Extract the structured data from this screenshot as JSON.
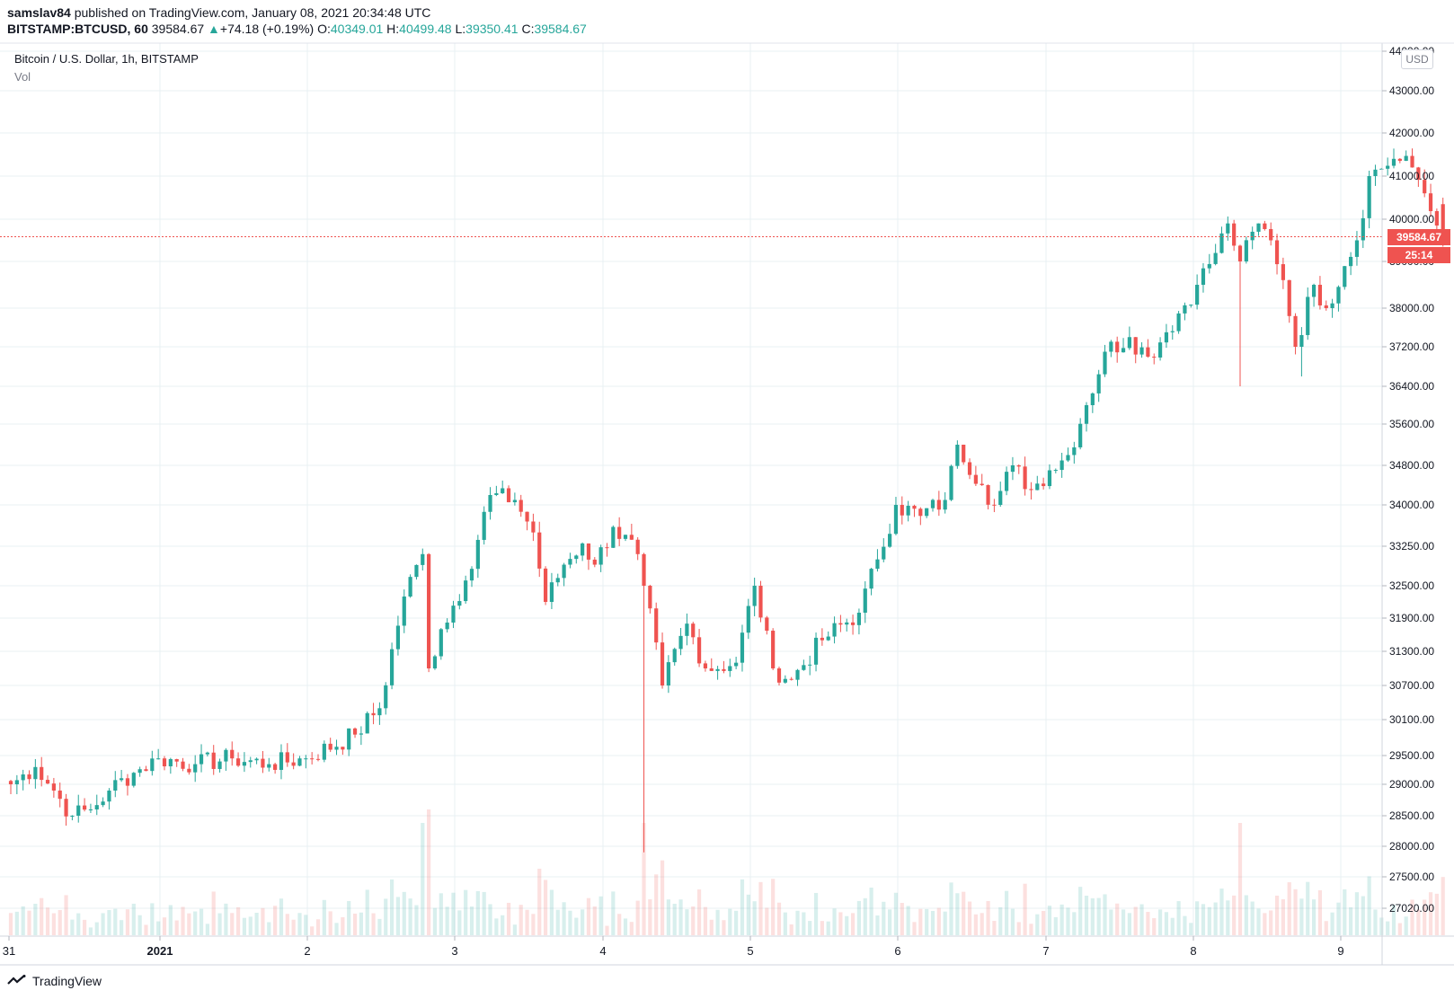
{
  "header": {
    "author": "samslav84",
    "published_text": " published on TradingView.com, January 08, 2021 20:34:48 UTC",
    "symbol": "BITSTAMP:BTCUSD, 60",
    "last": "39584.67",
    "change_arrow": "▲",
    "change": "+74.18 (+0.19%)",
    "o_label": "O:",
    "o_value": "40349.01",
    "h_label": "H:",
    "h_value": "40499.48",
    "l_label": "L:",
    "l_value": "39350.41",
    "c_label": "C:",
    "c_value": "39584.67"
  },
  "legend": {
    "series_title": "Bitcoin / U.S. Dollar, 1h, BITSTAMP",
    "indicator": "Vol"
  },
  "currency_button": "USD",
  "price_tag": {
    "value": "39584.67",
    "countdown": "25:14"
  },
  "footer": {
    "brand": "TradingView"
  },
  "colors": {
    "up": "#26a69a",
    "down": "#ef5350",
    "grid": "#e9f0f3"
  },
  "chart_data": {
    "type": "candlestick",
    "title": "Bitcoin / U.S. Dollar, 1h, BITSTAMP",
    "x_ticks": [
      "31",
      "2021",
      "2",
      "3",
      "4",
      "5",
      "6",
      "7",
      "8",
      "9"
    ],
    "y_ticks": [
      "44000.00",
      "43000.00",
      "42000.00",
      "41000.00",
      "40000.00",
      "39000.00",
      "38000.00",
      "37200.00",
      "36400.00",
      "35600.00",
      "34800.00",
      "34000.00",
      "33250.00",
      "32500.00",
      "31900.00",
      "31300.00",
      "30700.00",
      "30100.00",
      "29500.00",
      "29000.00",
      "28500.00",
      "28000.00",
      "27500.00",
      "27020.00"
    ],
    "last_price": 39584.67,
    "anchors": [
      {
        "t": 0,
        "p": 29000
      },
      {
        "t": 4,
        "p": 29300
      },
      {
        "t": 7,
        "p": 28900
      },
      {
        "t": 10,
        "p": 28500
      },
      {
        "t": 13,
        "p": 28600
      },
      {
        "t": 16,
        "p": 28900
      },
      {
        "t": 20,
        "p": 29200
      },
      {
        "t": 24,
        "p": 29450
      },
      {
        "t": 30,
        "p": 29350
      },
      {
        "t": 36,
        "p": 29450
      },
      {
        "t": 42,
        "p": 29350
      },
      {
        "t": 48,
        "p": 29450
      },
      {
        "t": 56,
        "p": 29850
      },
      {
        "t": 60,
        "p": 30300
      },
      {
        "t": 64,
        "p": 32300
      },
      {
        "t": 67,
        "p": 33100
      },
      {
        "t": 68,
        "p": 31000
      },
      {
        "t": 70,
        "p": 31700
      },
      {
        "t": 74,
        "p": 32600
      },
      {
        "t": 78,
        "p": 34200
      },
      {
        "t": 82,
        "p": 34100
      },
      {
        "t": 85,
        "p": 33500
      },
      {
        "t": 87,
        "p": 32200
      },
      {
        "t": 90,
        "p": 32900
      },
      {
        "t": 93,
        "p": 33300
      },
      {
        "t": 95,
        "p": 32900
      },
      {
        "t": 98,
        "p": 33600
      },
      {
        "t": 102,
        "p": 33100
      },
      {
        "t": 103,
        "p": 32500
      },
      {
        "t": 106,
        "p": 30700
      },
      {
        "t": 110,
        "p": 31800
      },
      {
        "t": 113,
        "p": 31000
      },
      {
        "t": 118,
        "p": 31100
      },
      {
        "t": 121,
        "p": 32500
      },
      {
        "t": 124,
        "p": 31000
      },
      {
        "t": 127,
        "p": 30800
      },
      {
        "t": 132,
        "p": 31500
      },
      {
        "t": 138,
        "p": 32000
      },
      {
        "t": 141,
        "p": 33000
      },
      {
        "t": 144,
        "p": 34000
      },
      {
        "t": 148,
        "p": 33800
      },
      {
        "t": 152,
        "p": 34100
      },
      {
        "t": 154,
        "p": 35200
      },
      {
        "t": 158,
        "p": 34400
      },
      {
        "t": 160,
        "p": 34000
      },
      {
        "t": 163,
        "p": 34800
      },
      {
        "t": 166,
        "p": 34300
      },
      {
        "t": 169,
        "p": 34700
      },
      {
        "t": 172,
        "p": 35000
      },
      {
        "t": 175,
        "p": 36000
      },
      {
        "t": 178,
        "p": 37100
      },
      {
        "t": 182,
        "p": 37400
      },
      {
        "t": 185,
        "p": 37000
      },
      {
        "t": 188,
        "p": 37500
      },
      {
        "t": 193,
        "p": 38500
      },
      {
        "t": 196,
        "p": 39200
      },
      {
        "t": 198,
        "p": 39900
      },
      {
        "t": 200,
        "p": 39000
      },
      {
        "t": 203,
        "p": 39900
      },
      {
        "t": 205,
        "p": 39500
      },
      {
        "t": 207,
        "p": 38600
      },
      {
        "t": 209,
        "p": 37200
      },
      {
        "t": 212,
        "p": 38500
      },
      {
        "t": 214,
        "p": 38000
      },
      {
        "t": 217,
        "p": 38900
      },
      {
        "t": 219,
        "p": 39500
      },
      {
        "t": 221,
        "p": 41000
      },
      {
        "t": 225,
        "p": 41400
      },
      {
        "t": 228,
        "p": 41200
      },
      {
        "t": 230,
        "p": 40600
      },
      {
        "t": 232,
        "p": 39850
      },
      {
        "t": 233,
        "p": 39584.67
      }
    ]
  }
}
